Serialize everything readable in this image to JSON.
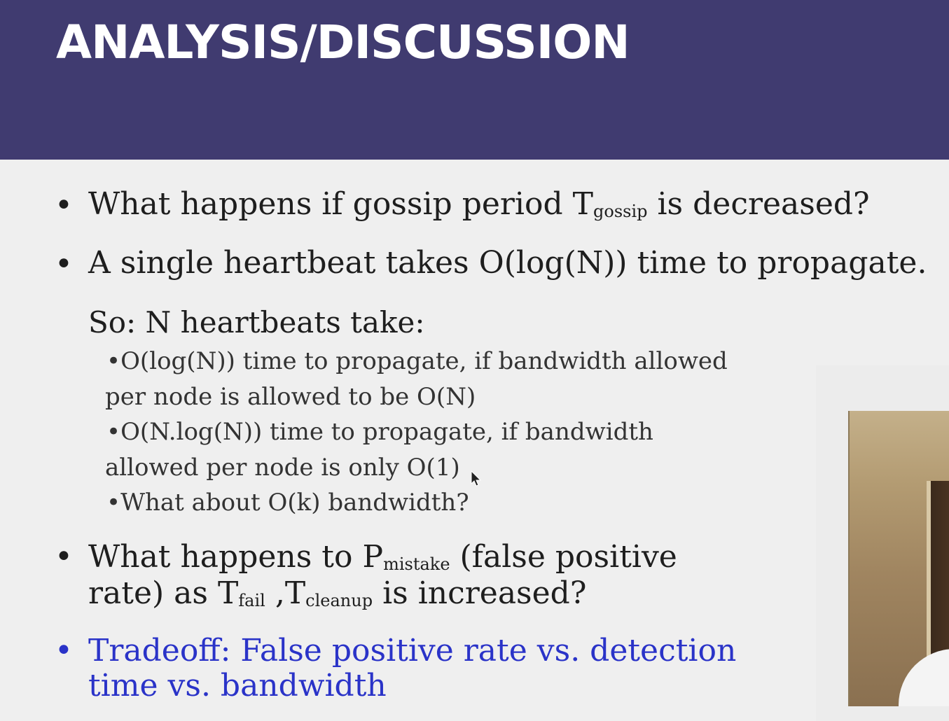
{
  "slide": {
    "title": "ANALYSIS/DISCUSSION",
    "bullet1": {
      "pre": "What happens if gossip period T",
      "sub": "gossip",
      "post": " is decreased?"
    },
    "bullet2": "A single heartbeat takes O(log(N)) time to propagate.",
    "so_line": "So: N heartbeats take:",
    "subbullets": [
      {
        "line1": "O(log(N)) time to propagate, if bandwidth allowed",
        "line2": "per node is allowed to be O(N)"
      },
      {
        "line1": "O(N.log(N)) time to propagate, if bandwidth",
        "line2": "allowed per node is only O(1)"
      },
      {
        "line1": "What about O(k) bandwidth?"
      }
    ],
    "bullet3": {
      "l1_pre": "What happens to P",
      "l1_sub": "mistake",
      "l1_post": " (false positive",
      "l2_pre": "rate) as T",
      "l2_sub1": "fail",
      "l2_mid": " ,T",
      "l2_sub2": "cleanup",
      "l2_post": " is increased?"
    },
    "bullet4": {
      "line1": "Tradeoff: False positive rate vs. detection",
      "line2": "time vs. bandwidth"
    },
    "bullet_char": "•"
  },
  "colors": {
    "header": "#403b70",
    "background": "#efefef",
    "highlight": "#2a33c8"
  }
}
